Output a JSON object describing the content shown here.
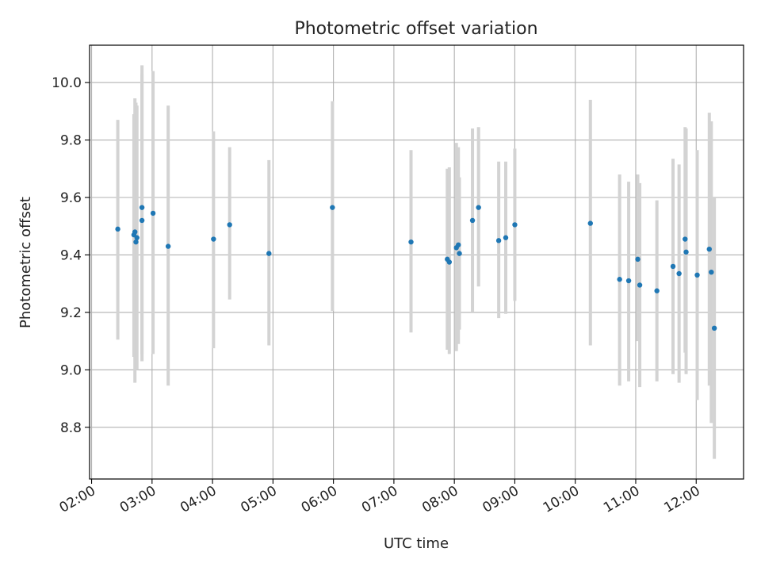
{
  "chart_data": {
    "type": "scatter",
    "title": "Photometric offset variation",
    "xlabel": "UTC time",
    "ylabel": "Photometric offset",
    "x_unit": "hours",
    "xlim": [
      "01:58",
      "12:47"
    ],
    "ylim": [
      8.62,
      10.13
    ],
    "x_ticks": [
      "02:00",
      "03:00",
      "04:00",
      "05:00",
      "06:00",
      "07:00",
      "08:00",
      "09:00",
      "10:00",
      "11:00",
      "12:00"
    ],
    "y_ticks": [
      8.8,
      9.0,
      9.2,
      9.4,
      9.6,
      9.8,
      10.0
    ],
    "grid": true,
    "series": [
      {
        "marker_color": "#1f77b4",
        "errorbar_color": "#d3d3d3",
        "points": [
          {
            "time": "02:26",
            "y": 9.49,
            "low": 9.105,
            "high": 9.87
          },
          {
            "time": "02:42",
            "y": 9.47,
            "low": 9.045,
            "high": 9.89
          },
          {
            "time": "02:43",
            "y": 9.48,
            "low": 8.955,
            "high": 9.945
          },
          {
            "time": "02:44",
            "y": 9.445,
            "low": 9.06,
            "high": 9.93
          },
          {
            "time": "02:45",
            "y": 9.46,
            "low": 9.0,
            "high": 9.92
          },
          {
            "time": "02:50",
            "y": 9.565,
            "low": 9.055,
            "high": 10.06
          },
          {
            "time": "02:50",
            "y": 9.52,
            "low": 9.03,
            "high": 10.03
          },
          {
            "time": "03:01",
            "y": 9.545,
            "low": 9.055,
            "high": 10.04
          },
          {
            "time": "03:16",
            "y": 9.43,
            "low": 8.945,
            "high": 9.92
          },
          {
            "time": "04:01",
            "y": 9.455,
            "low": 9.075,
            "high": 9.83
          },
          {
            "time": "04:17",
            "y": 9.505,
            "low": 9.245,
            "high": 9.775
          },
          {
            "time": "04:56",
            "y": 9.405,
            "low": 9.085,
            "high": 9.73
          },
          {
            "time": "05:59",
            "y": 9.565,
            "low": 9.205,
            "high": 9.935
          },
          {
            "time": "07:17",
            "y": 9.445,
            "low": 9.13,
            "high": 9.765
          },
          {
            "time": "07:53",
            "y": 9.385,
            "low": 9.07,
            "high": 9.7
          },
          {
            "time": "07:55",
            "y": 9.375,
            "low": 9.055,
            "high": 9.705
          },
          {
            "time": "08:02",
            "y": 9.425,
            "low": 9.065,
            "high": 9.79
          },
          {
            "time": "08:04",
            "y": 9.435,
            "low": 9.09,
            "high": 9.775
          },
          {
            "time": "08:05",
            "y": 9.405,
            "low": 9.14,
            "high": 9.67
          },
          {
            "time": "08:18",
            "y": 9.52,
            "low": 9.2,
            "high": 9.84
          },
          {
            "time": "08:24",
            "y": 9.565,
            "low": 9.29,
            "high": 9.845
          },
          {
            "time": "08:44",
            "y": 9.45,
            "low": 9.18,
            "high": 9.725
          },
          {
            "time": "08:51",
            "y": 9.46,
            "low": 9.195,
            "high": 9.725
          },
          {
            "time": "09:00",
            "y": 9.505,
            "low": 9.24,
            "high": 9.77
          },
          {
            "time": "10:15",
            "y": 9.51,
            "low": 9.085,
            "high": 9.94
          },
          {
            "time": "10:44",
            "y": 9.315,
            "low": 8.945,
            "high": 9.68
          },
          {
            "time": "10:53",
            "y": 9.31,
            "low": 8.96,
            "high": 9.655
          },
          {
            "time": "11:02",
            "y": 9.385,
            "low": 9.1,
            "high": 9.68
          },
          {
            "time": "11:04",
            "y": 9.295,
            "low": 8.94,
            "high": 9.65
          },
          {
            "time": "11:21",
            "y": 9.275,
            "low": 8.96,
            "high": 9.59
          },
          {
            "time": "11:37",
            "y": 9.36,
            "low": 8.985,
            "high": 9.735
          },
          {
            "time": "11:43",
            "y": 9.335,
            "low": 8.955,
            "high": 9.715
          },
          {
            "time": "11:49",
            "y": 9.455,
            "low": 9.06,
            "high": 9.845
          },
          {
            "time": "11:50",
            "y": 9.41,
            "low": 8.985,
            "high": 9.84
          },
          {
            "time": "12:01",
            "y": 9.33,
            "low": 8.895,
            "high": 9.765
          },
          {
            "time": "12:13",
            "y": 9.42,
            "low": 8.945,
            "high": 9.895
          },
          {
            "time": "12:15",
            "y": 9.34,
            "low": 8.815,
            "high": 9.865
          },
          {
            "time": "12:18",
            "y": 9.145,
            "low": 8.69,
            "high": 9.6
          }
        ]
      }
    ]
  }
}
